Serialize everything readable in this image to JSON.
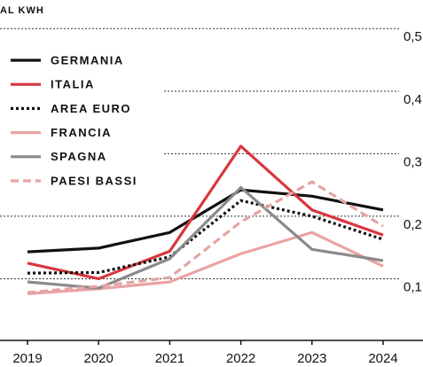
{
  "chart_data": {
    "type": "line",
    "title": "AL KWH",
    "x": [
      "2019",
      "2020",
      "2021",
      "2022",
      "2023",
      "2024"
    ],
    "ylim": [
      0,
      0.55
    ],
    "yticks": [
      {
        "value": 0.1,
        "label": "0,1"
      },
      {
        "value": 0.2,
        "label": "0,2"
      },
      {
        "value": 0.3,
        "label": "0,3"
      },
      {
        "value": 0.4,
        "label": "0,4"
      },
      {
        "value": 0.5,
        "label": "0,5"
      }
    ],
    "grid": true,
    "legend": "upper left",
    "series": [
      {
        "name": "GERMANIA",
        "color": "#111111",
        "style": "solid",
        "values": [
          0.143,
          0.149,
          0.174,
          0.242,
          0.232,
          0.21
        ]
      },
      {
        "name": "ITALIA",
        "color": "#d9363e",
        "style": "solid",
        "values": [
          0.125,
          0.1,
          0.144,
          0.312,
          0.21,
          0.17
        ]
      },
      {
        "name": "AREA EURO",
        "color": "#111111",
        "style": "dotted",
        "values": [
          0.109,
          0.11,
          0.135,
          0.225,
          0.2,
          0.163
        ]
      },
      {
        "name": "FRANCIA",
        "color": "#eaa3a3",
        "style": "solid",
        "values": [
          0.076,
          0.084,
          0.095,
          0.14,
          0.174,
          0.12
        ]
      },
      {
        "name": "SPAGNA",
        "color": "#8a8a8a",
        "style": "solid",
        "values": [
          0.095,
          0.085,
          0.132,
          0.246,
          0.147,
          0.129
        ]
      },
      {
        "name": "PAESI BASSI",
        "color": "#e6a3a3",
        "style": "dashed",
        "values": [
          0.078,
          0.088,
          0.102,
          0.191,
          0.255,
          0.184
        ]
      }
    ]
  }
}
